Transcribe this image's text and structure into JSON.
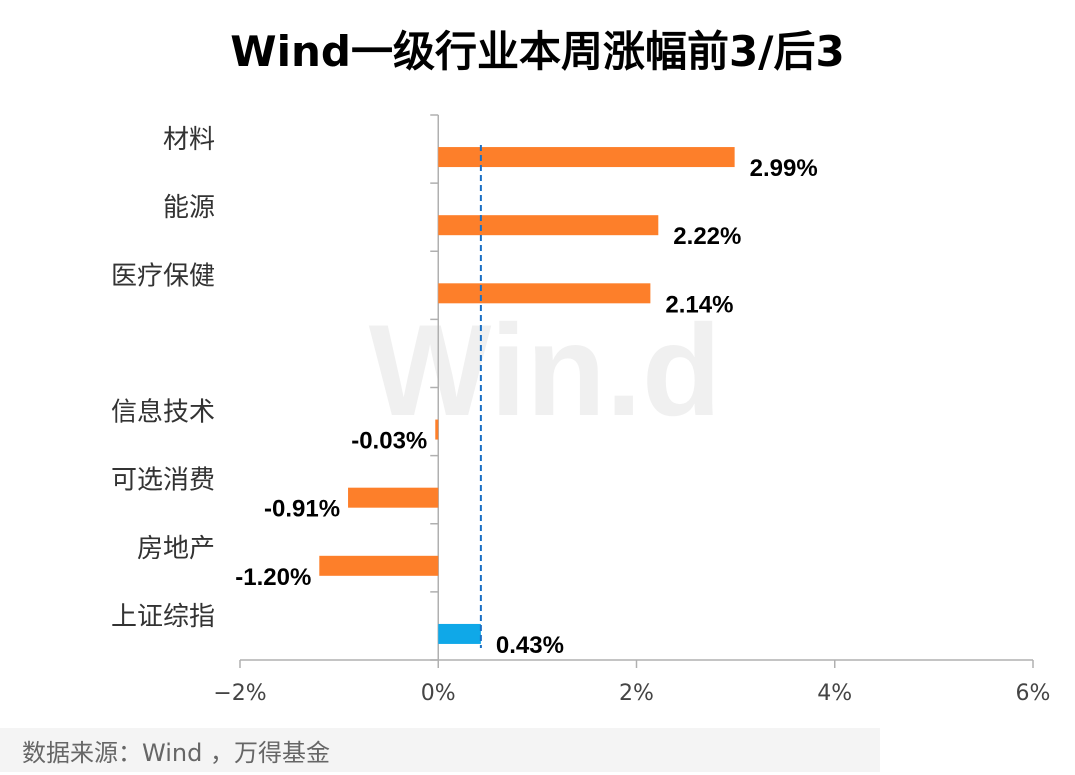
{
  "title": "Wind一级行业本周涨幅前3/后3",
  "watermark": "Win.d",
  "source": "数据来源：Wind ，万得基金",
  "colors": {
    "bar": "#fd7f2a",
    "benchmark": "#0fa8e8",
    "axis": "#b0b0b0",
    "label": "#000000",
    "tick": "#444444"
  },
  "chart_data": {
    "type": "bar",
    "orientation": "horizontal",
    "categories": [
      "材料",
      "能源",
      "医疗保健",
      "",
      "信息技术",
      "可选消费",
      "房地产",
      "上证综指"
    ],
    "values": [
      2.99,
      2.22,
      2.14,
      null,
      -0.03,
      -0.91,
      -1.2,
      0.43
    ],
    "value_labels": [
      "2.99%",
      "2.22%",
      "2.14%",
      "",
      "-0.03%",
      "-0.91%",
      "-1.20%",
      "0.43%"
    ],
    "highlight_category": "上证综指",
    "reference_line": {
      "value": 0.43,
      "style": "dashed"
    },
    "xlim": [
      -2,
      6
    ],
    "xticks": [
      -2,
      0,
      2,
      4,
      6
    ],
    "xtick_labels": [
      "−2%",
      "0%",
      "2%",
      "4%",
      "6%"
    ],
    "xlabel": "",
    "ylabel": "",
    "legend": "none",
    "grid": false
  }
}
